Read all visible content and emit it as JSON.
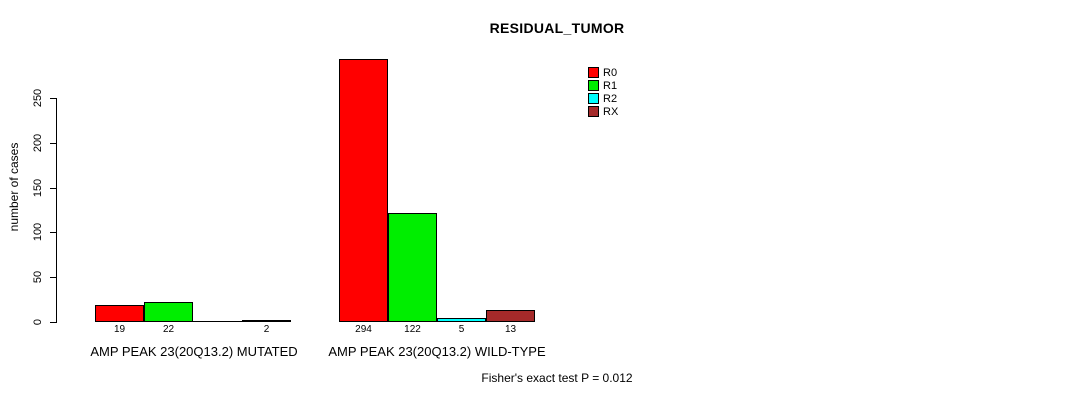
{
  "chart_data": {
    "type": "bar",
    "title": "RESIDUAL_TUMOR",
    "xlabel": "",
    "ylabel": "number of cases",
    "ylim": [
      0,
      250
    ],
    "yticks": [
      0,
      50,
      100,
      150,
      200,
      250
    ],
    "grid": false,
    "legend_position": "top-right",
    "categories": [
      "AMP PEAK 23(20Q13.2) MUTATED",
      "AMP PEAK 23(20Q13.2) WILD-TYPE"
    ],
    "series": [
      {
        "name": "R0",
        "color": "#FF0000",
        "values": [
          19,
          294
        ]
      },
      {
        "name": "R1",
        "color": "#00EE00",
        "values": [
          22,
          122
        ]
      },
      {
        "name": "R2",
        "color": "#00FFFF",
        "values": [
          0,
          5
        ]
      },
      {
        "name": "RX",
        "color": "#A52A2A",
        "values": [
          2,
          13
        ]
      }
    ],
    "value_labels": [
      [
        "19",
        "22",
        "",
        "2"
      ],
      [
        "294",
        "122",
        "5",
        "13"
      ]
    ],
    "annotation": "Fisher's exact test P = 0.012"
  },
  "colors": {
    "background": "#FFFFFF",
    "axis": "#000000",
    "text": "#000000",
    "bar_border": "#000000"
  }
}
